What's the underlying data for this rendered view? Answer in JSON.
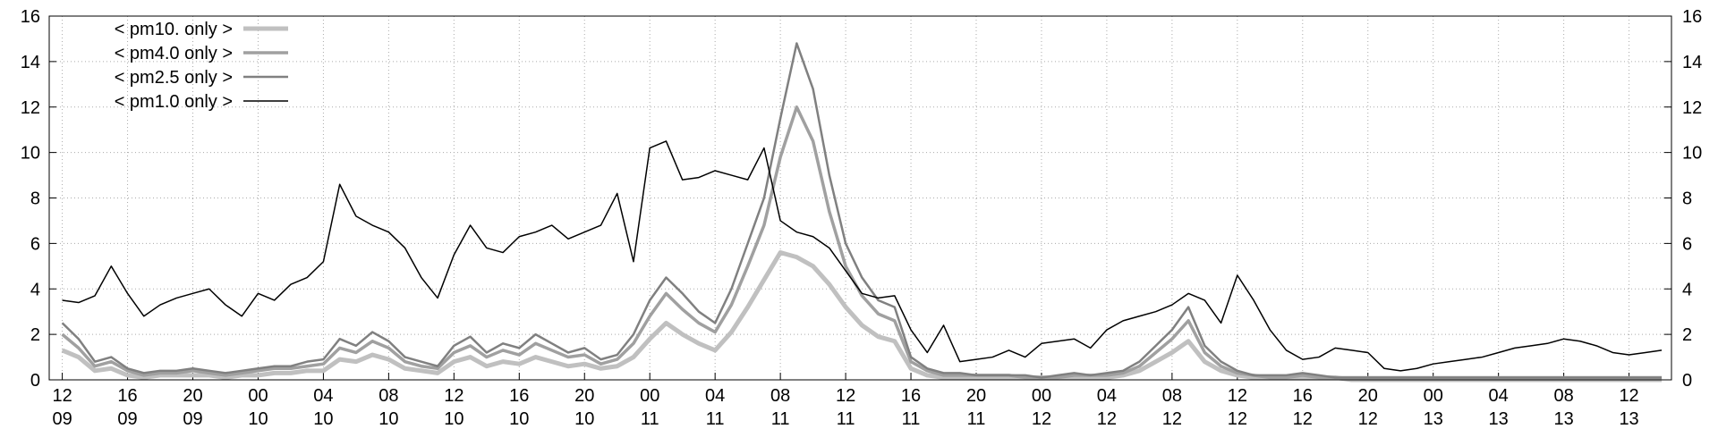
{
  "chart_data": {
    "type": "line",
    "x": [
      0,
      1,
      2,
      3,
      4,
      5,
      6,
      7,
      8,
      9,
      10,
      11,
      12,
      13,
      14,
      15,
      16,
      17,
      18,
      19,
      20,
      21,
      22,
      23,
      24,
      25,
      26,
      27,
      28,
      29,
      30,
      31,
      32,
      33,
      34,
      35,
      36,
      37,
      38,
      39,
      40,
      41,
      42,
      43,
      44,
      45,
      46,
      47,
      48,
      49,
      50,
      51,
      52,
      53,
      54,
      55,
      56,
      57,
      58,
      59,
      60,
      61,
      62,
      63,
      64,
      65,
      66,
      67,
      68,
      69,
      70,
      71,
      72,
      73,
      74,
      75,
      76,
      77,
      78,
      79,
      80,
      81,
      82,
      83,
      84,
      85,
      86,
      87,
      88,
      89,
      90,
      91,
      92,
      93,
      94,
      95,
      96,
      97,
      98
    ],
    "xlim": [
      -0.8,
      98.6
    ],
    "xticks": [
      {
        "value": 0,
        "label": "12\n09"
      },
      {
        "value": 4,
        "label": "16\n09"
      },
      {
        "value": 8,
        "label": "20\n09"
      },
      {
        "value": 12,
        "label": "00\n10"
      },
      {
        "value": 16,
        "label": "04\n10"
      },
      {
        "value": 20,
        "label": "08\n10"
      },
      {
        "value": 24,
        "label": "12\n10"
      },
      {
        "value": 28,
        "label": "16\n10"
      },
      {
        "value": 32,
        "label": "20\n10"
      },
      {
        "value": 36,
        "label": "00\n11"
      },
      {
        "value": 40,
        "label": "04\n11"
      },
      {
        "value": 44,
        "label": "08\n11"
      },
      {
        "value": 48,
        "label": "12\n11"
      },
      {
        "value": 52,
        "label": "16\n11"
      },
      {
        "value": 56,
        "label": "20\n11"
      },
      {
        "value": 60,
        "label": "00\n12"
      },
      {
        "value": 64,
        "label": "04\n12"
      },
      {
        "value": 68,
        "label": "08\n12"
      },
      {
        "value": 72,
        "label": "12\n12"
      },
      {
        "value": 76,
        "label": "16\n12"
      },
      {
        "value": 80,
        "label": "20\n12"
      },
      {
        "value": 84,
        "label": "00\n13"
      },
      {
        "value": 88,
        "label": "04\n13"
      },
      {
        "value": 92,
        "label": "08\n13"
      },
      {
        "value": 96,
        "label": "12\n13"
      }
    ],
    "ylim": [
      0,
      16
    ],
    "yticks": [
      0,
      2,
      4,
      6,
      8,
      10,
      12,
      14,
      16
    ],
    "y2lim": [
      0,
      16
    ],
    "y2ticks": [
      0,
      2,
      4,
      6,
      8,
      10,
      12,
      14,
      16
    ],
    "grid": true,
    "legend": "top-left",
    "series": [
      {
        "name": "< pm10. only >",
        "color": "#c0c0c0",
        "line_width": 5,
        "values": [
          1.3,
          1.0,
          0.4,
          0.5,
          0.2,
          0.1,
          0.2,
          0.2,
          0.2,
          0.2,
          0.1,
          0.2,
          0.2,
          0.3,
          0.3,
          0.4,
          0.4,
          0.9,
          0.8,
          1.1,
          0.9,
          0.5,
          0.4,
          0.3,
          0.8,
          1.0,
          0.6,
          0.8,
          0.7,
          1.0,
          0.8,
          0.6,
          0.7,
          0.5,
          0.6,
          1.0,
          1.8,
          2.5,
          2.0,
          1.6,
          1.3,
          2.1,
          3.2,
          4.4,
          5.6,
          5.4,
          5.0,
          4.2,
          3.2,
          2.4,
          1.9,
          1.7,
          0.5,
          0.2,
          0.1,
          0.1,
          0.1,
          0.1,
          0.1,
          0.1,
          0.1,
          0.1,
          0.1,
          0.1,
          0.1,
          0.2,
          0.4,
          0.8,
          1.2,
          1.7,
          0.8,
          0.4,
          0.2,
          0.1,
          0.1,
          0.1,
          0.1,
          0.1,
          0.1,
          0,
          0,
          0,
          0,
          0,
          0,
          0,
          0,
          0,
          0,
          0,
          0,
          0,
          0,
          0,
          0,
          0,
          0,
          0,
          0
        ]
      },
      {
        "name": "< pm4.0 only >",
        "color": "#a0a0a0",
        "line_width": 3.5,
        "values": [
          2.0,
          1.4,
          0.6,
          0.8,
          0.4,
          0.2,
          0.3,
          0.3,
          0.4,
          0.3,
          0.2,
          0.3,
          0.4,
          0.5,
          0.5,
          0.6,
          0.7,
          1.4,
          1.2,
          1.7,
          1.4,
          0.8,
          0.6,
          0.5,
          1.2,
          1.5,
          1.0,
          1.3,
          1.1,
          1.6,
          1.3,
          1.0,
          1.1,
          0.7,
          0.9,
          1.6,
          2.8,
          3.8,
          3.1,
          2.5,
          2.1,
          3.3,
          5.0,
          6.8,
          9.8,
          12.0,
          10.5,
          7.4,
          5.0,
          3.7,
          2.9,
          2.6,
          0.8,
          0.4,
          0.2,
          0.2,
          0.2,
          0.2,
          0.2,
          0.1,
          0.1,
          0.1,
          0.2,
          0.2,
          0.2,
          0.3,
          0.6,
          1.2,
          1.8,
          2.6,
          1.2,
          0.6,
          0.3,
          0.2,
          0.1,
          0.1,
          0.2,
          0.1,
          0.1,
          0.1,
          0.1,
          0.1,
          0.1,
          0.1,
          0.1,
          0.1,
          0.1,
          0.1,
          0.1,
          0.1,
          0.1,
          0.1,
          0.1,
          0.1,
          0.1,
          0.1,
          0.1,
          0.1,
          0.1
        ]
      },
      {
        "name": "< pm2.5 only >",
        "color": "#808080",
        "line_width": 2.5,
        "values": [
          2.5,
          1.8,
          0.8,
          1.0,
          0.5,
          0.3,
          0.4,
          0.4,
          0.5,
          0.4,
          0.3,
          0.4,
          0.5,
          0.6,
          0.6,
          0.8,
          0.9,
          1.8,
          1.5,
          2.1,
          1.7,
          1.0,
          0.8,
          0.6,
          1.5,
          1.9,
          1.2,
          1.6,
          1.4,
          2.0,
          1.6,
          1.2,
          1.4,
          0.9,
          1.1,
          2.0,
          3.5,
          4.5,
          3.8,
          3.0,
          2.5,
          4.0,
          6.0,
          8.0,
          11.5,
          14.8,
          12.8,
          9.0,
          6.0,
          4.5,
          3.5,
          3.2,
          1.0,
          0.5,
          0.3,
          0.3,
          0.2,
          0.2,
          0.2,
          0.2,
          0.1,
          0.2,
          0.3,
          0.2,
          0.3,
          0.4,
          0.8,
          1.5,
          2.2,
          3.2,
          1.5,
          0.8,
          0.4,
          0.2,
          0.2,
          0.2,
          0.3,
          0.2,
          0.1,
          0.1,
          0.1,
          0.1,
          0.1,
          0.1,
          0.1,
          0.1,
          0.1,
          0.1,
          0.1,
          0.1,
          0.1,
          0.1,
          0.1,
          0.1,
          0.1,
          0.1,
          0.1,
          0.1,
          0.1
        ]
      },
      {
        "name": "< pm1.0 only >",
        "color": "#000000",
        "line_width": 1.5,
        "values": [
          3.5,
          3.4,
          3.7,
          5.0,
          3.8,
          2.8,
          3.3,
          3.6,
          3.8,
          4.0,
          3.3,
          2.8,
          3.8,
          3.5,
          4.2,
          4.5,
          5.2,
          8.6,
          7.2,
          6.8,
          6.5,
          5.8,
          4.5,
          3.6,
          5.5,
          6.8,
          5.8,
          5.6,
          6.3,
          6.5,
          6.8,
          6.2,
          6.5,
          6.8,
          8.2,
          5.2,
          10.2,
          10.5,
          8.8,
          8.9,
          9.2,
          9.0,
          8.8,
          10.2,
          7.0,
          6.5,
          6.3,
          5.8,
          4.8,
          3.8,
          3.6,
          3.7,
          2.2,
          1.2,
          2.4,
          0.8,
          0.9,
          1.0,
          1.3,
          1.0,
          1.6,
          1.7,
          1.8,
          1.4,
          2.2,
          2.6,
          2.8,
          3.0,
          3.3,
          3.8,
          3.5,
          2.5,
          4.6,
          3.5,
          2.2,
          1.3,
          0.9,
          1.0,
          1.4,
          1.3,
          1.2,
          0.5,
          0.4,
          0.5,
          0.7,
          0.8,
          0.9,
          1.0,
          1.2,
          1.4,
          1.5,
          1.6,
          1.8,
          1.7,
          1.5,
          1.2,
          1.1,
          1.2,
          1.3
        ]
      }
    ]
  }
}
